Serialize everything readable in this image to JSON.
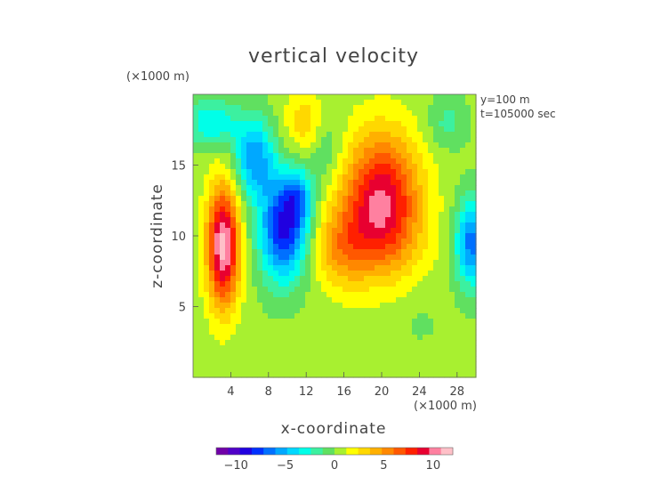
{
  "chart_data": {
    "type": "heatmap",
    "title": "vertical velocity",
    "xlabel": "x-coordinate",
    "ylabel": "z-coordinate",
    "x_unit": "(×1000 m)",
    "z_unit": "(×1000 m)",
    "info_lines": [
      "y=100  m",
      "t=105000 sec"
    ],
    "xlim": [
      0,
      30
    ],
    "zlim": [
      0,
      20
    ],
    "x_ticks": [
      4,
      8,
      12,
      16,
      20,
      24,
      28
    ],
    "z_ticks": [
      5,
      10,
      15
    ],
    "colorbar": {
      "range": [
        -12,
        12
      ],
      "ticks": [
        -10,
        -5,
        0,
        5,
        10
      ],
      "tick_labels": [
        "−10",
        "−5",
        "0",
        "5",
        "10"
      ],
      "colors": [
        "#7000a8",
        "#5000c8",
        "#2000e0",
        "#0030ff",
        "#0070ff",
        "#00a8ff",
        "#00d8ff",
        "#00ffe8",
        "#3cf0a0",
        "#60e060",
        "#a8f030",
        "#ffff00",
        "#ffd800",
        "#ffb000",
        "#ff8800",
        "#ff5800",
        "#ff2000",
        "#e80030",
        "#ff80a0",
        "#ffc0c8"
      ]
    },
    "background_value": 0.4,
    "features": [
      {
        "x": 3.2,
        "z": 9.3,
        "sx": 1.2,
        "sz": 3.0,
        "w": 11
      },
      {
        "x": 9.6,
        "z": 10.5,
        "sx": 1.8,
        "sz": 2.6,
        "w": -9
      },
      {
        "x": 11.2,
        "z": 12.7,
        "sx": 1.1,
        "sz": 1.4,
        "w": -4
      },
      {
        "x": 6.5,
        "z": 15.5,
        "sx": 1.5,
        "sz": 2.0,
        "w": -6
      },
      {
        "x": 2.0,
        "z": 18.0,
        "sx": 2.0,
        "sz": 1.2,
        "w": -4
      },
      {
        "x": 20.0,
        "z": 13.0,
        "sx": 2.8,
        "sz": 3.2,
        "w": 8
      },
      {
        "x": 19.5,
        "z": 10.0,
        "sx": 3.5,
        "sz": 2.5,
        "w": 3
      },
      {
        "x": 15.5,
        "z": 9.0,
        "sx": 2.0,
        "sz": 2.0,
        "w": 3
      },
      {
        "x": 12.0,
        "z": 18.0,
        "sx": 1.6,
        "sz": 1.6,
        "w": 3
      },
      {
        "x": 29.5,
        "z": 9.5,
        "sx": 1.2,
        "sz": 2.2,
        "w": -7
      },
      {
        "x": 14.0,
        "z": 16.5,
        "sx": 1.3,
        "sz": 2.0,
        "w": -2
      },
      {
        "x": 27.0,
        "z": 18.0,
        "sx": 1.5,
        "sz": 1.3,
        "w": -2
      },
      {
        "x": 24.0,
        "z": 4.0,
        "sx": 2.0,
        "sz": 1.5,
        "w": -0.6
      }
    ]
  }
}
